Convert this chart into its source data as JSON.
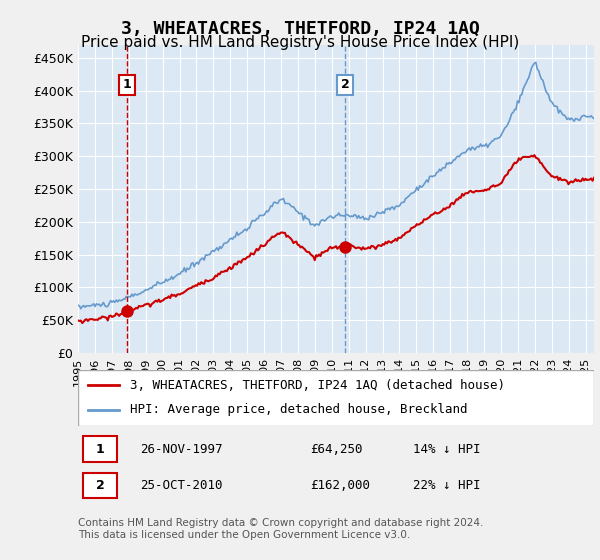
{
  "title": "3, WHEATACRES, THETFORD, IP24 1AQ",
  "subtitle": "Price paid vs. HM Land Registry's House Price Index (HPI)",
  "title_fontsize": 13,
  "subtitle_fontsize": 11,
  "background_color": "#dce9f5",
  "plot_bg_color": "#dce9f5",
  "ylabel_ticks": [
    "£0",
    "£50K",
    "£100K",
    "£150K",
    "£200K",
    "£250K",
    "£300K",
    "£350K",
    "£400K",
    "£450K"
  ],
  "ytick_values": [
    0,
    50000,
    100000,
    150000,
    200000,
    250000,
    300000,
    350000,
    400000,
    450000
  ],
  "ylim": [
    0,
    470000
  ],
  "xlim_start": 1995.0,
  "xlim_end": 2025.5,
  "red_line_color": "#cc0000",
  "blue_line_color": "#6699cc",
  "grid_color": "#ffffff",
  "purchase1_x": 1997.9,
  "purchase1_y": 64250,
  "purchase1_label": "1",
  "purchase1_date": "26-NOV-1997",
  "purchase1_price": "£64,250",
  "purchase1_hpi": "14% ↓ HPI",
  "purchase2_x": 2010.8,
  "purchase2_y": 162000,
  "purchase2_label": "2",
  "purchase2_date": "25-OCT-2010",
  "purchase2_price": "£162,000",
  "purchase2_hpi": "22% ↓ HPI",
  "legend_label_red": "3, WHEATACRES, THETFORD, IP24 1AQ (detached house)",
  "legend_label_blue": "HPI: Average price, detached house, Breckland",
  "footer": "Contains HM Land Registry data © Crown copyright and database right 2024.\nThis data is licensed under the Open Government Licence v3.0.",
  "xtick_years": [
    1995,
    1996,
    1997,
    1998,
    1999,
    2000,
    2001,
    2002,
    2003,
    2004,
    2005,
    2006,
    2007,
    2008,
    2009,
    2010,
    2011,
    2012,
    2013,
    2014,
    2015,
    2016,
    2017,
    2018,
    2019,
    2020,
    2021,
    2022,
    2023,
    2024,
    2025
  ]
}
